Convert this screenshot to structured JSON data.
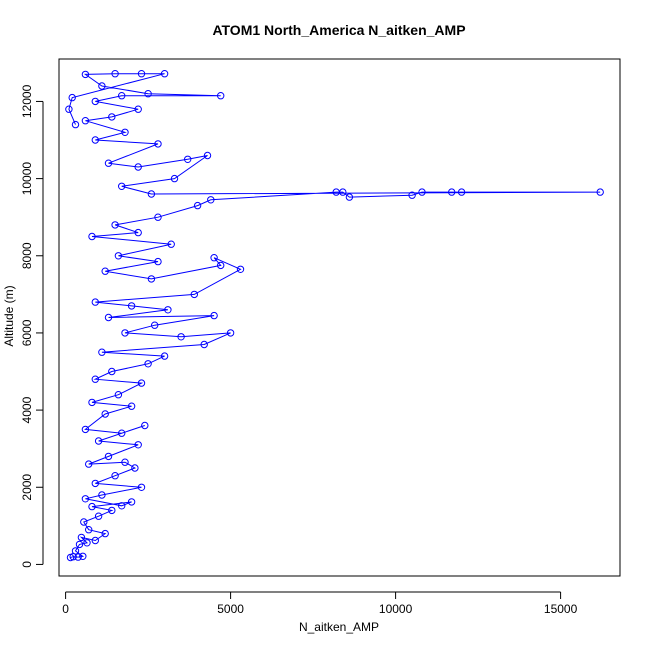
{
  "chart_data": {
    "type": "scatter",
    "title": "ATOM1 North_America N_aitken_AMP",
    "xlabel": "N_aitken_AMP",
    "ylabel": "Altitude (m)",
    "xlim": [
      -200,
      16800
    ],
    "ylim": [
      -300,
      13100
    ],
    "xticks": [
      0,
      5000,
      10000,
      15000
    ],
    "yticks": [
      0,
      2000,
      4000,
      6000,
      8000,
      10000,
      12000
    ],
    "xtick_labels": [
      "0",
      "5000",
      "10000",
      "15000"
    ],
    "ytick_labels": [
      "0",
      "2000",
      "4000",
      "6000",
      "8000",
      "10000",
      "12000"
    ],
    "marker": "open-circle",
    "connected_by_lines": true,
    "grid": false,
    "legend": "none",
    "series_color": "#0000ff",
    "series": [
      {
        "points": [
          [
            150,
            180
          ],
          [
            230,
            200
          ],
          [
            380,
            190
          ],
          [
            520,
            210
          ],
          [
            300,
            350
          ],
          [
            420,
            520
          ],
          [
            650,
            560
          ],
          [
            480,
            700
          ],
          [
            900,
            620
          ],
          [
            1200,
            800
          ],
          [
            700,
            900
          ],
          [
            550,
            1100
          ],
          [
            1000,
            1250
          ],
          [
            1400,
            1400
          ],
          [
            800,
            1500
          ],
          [
            2000,
            1620
          ],
          [
            1700,
            1520
          ],
          [
            600,
            1700
          ],
          [
            1100,
            1800
          ],
          [
            2300,
            2000
          ],
          [
            900,
            2100
          ],
          [
            1500,
            2300
          ],
          [
            2100,
            2500
          ],
          [
            1800,
            2650
          ],
          [
            700,
            2600
          ],
          [
            1300,
            2800
          ],
          [
            2200,
            3100
          ],
          [
            1000,
            3200
          ],
          [
            2400,
            3600
          ],
          [
            1700,
            3400
          ],
          [
            600,
            3500
          ],
          [
            1200,
            3900
          ],
          [
            2000,
            4100
          ],
          [
            800,
            4200
          ],
          [
            1600,
            4400
          ],
          [
            2300,
            4700
          ],
          [
            900,
            4800
          ],
          [
            1400,
            5000
          ],
          [
            2500,
            5200
          ],
          [
            3000,
            5400
          ],
          [
            1100,
            5500
          ],
          [
            4200,
            5700
          ],
          [
            5000,
            6000
          ],
          [
            3500,
            5900
          ],
          [
            1800,
            6000
          ],
          [
            2700,
            6200
          ],
          [
            4500,
            6450
          ],
          [
            1300,
            6400
          ],
          [
            3100,
            6600
          ],
          [
            2000,
            6700
          ],
          [
            900,
            6800
          ],
          [
            3900,
            7000
          ],
          [
            5300,
            7650
          ],
          [
            4500,
            7950
          ],
          [
            4700,
            7750
          ],
          [
            2600,
            7400
          ],
          [
            1200,
            7600
          ],
          [
            2800,
            7850
          ],
          [
            1600,
            8000
          ],
          [
            3200,
            8300
          ],
          [
            800,
            8500
          ],
          [
            2200,
            8600
          ],
          [
            1500,
            8800
          ],
          [
            2800,
            9000
          ],
          [
            4000,
            9300
          ],
          [
            4400,
            9450
          ],
          [
            8200,
            9650
          ],
          [
            8400,
            9650
          ],
          [
            8600,
            9520
          ],
          [
            10500,
            9570
          ],
          [
            10800,
            9650
          ],
          [
            11700,
            9650
          ],
          [
            12000,
            9650
          ],
          [
            16200,
            9650
          ],
          [
            2600,
            9600
          ],
          [
            1700,
            9800
          ],
          [
            3300,
            10000
          ],
          [
            4300,
            10600
          ],
          [
            3700,
            10500
          ],
          [
            2200,
            10300
          ],
          [
            1300,
            10400
          ],
          [
            2800,
            10900
          ],
          [
            900,
            11000
          ],
          [
            1800,
            11200
          ],
          [
            600,
            11500
          ],
          [
            1400,
            11600
          ],
          [
            2200,
            11800
          ],
          [
            900,
            12000
          ],
          [
            1700,
            12150
          ],
          [
            4700,
            12150
          ],
          [
            2500,
            12200
          ],
          [
            1100,
            12400
          ],
          [
            600,
            12700
          ],
          [
            1500,
            12720
          ],
          [
            2300,
            12720
          ],
          [
            3000,
            12720
          ],
          [
            200,
            12100
          ],
          [
            100,
            11800
          ],
          [
            300,
            11400
          ]
        ]
      }
    ]
  }
}
